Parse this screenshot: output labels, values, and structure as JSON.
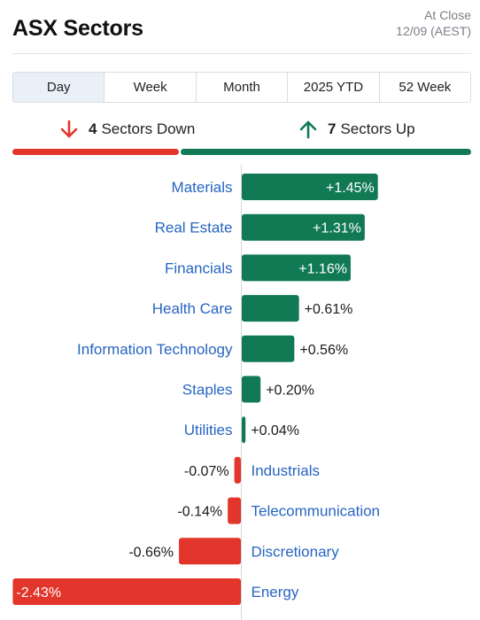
{
  "header": {
    "title": "ASX Sectors",
    "status_line1": "At Close",
    "status_line2": "12/09 (AEST)"
  },
  "tabs": [
    {
      "label": "Day",
      "active": true
    },
    {
      "label": "Week",
      "active": false
    },
    {
      "label": "Month",
      "active": false
    },
    {
      "label": "2025 YTD",
      "active": false
    },
    {
      "label": "52 Week",
      "active": false
    }
  ],
  "summary": {
    "down_count": "4",
    "down_text": "Sectors Down",
    "up_count": "7",
    "up_text": "Sectors Up",
    "down_icon": "arrow-down-icon",
    "up_icon": "arrow-up-icon"
  },
  "colors": {
    "up": "#117a55",
    "down": "#e2352b",
    "label": "#2765c2"
  },
  "chart_data": {
    "type": "bar",
    "orientation": "horizontal",
    "categories": [
      "Materials",
      "Real Estate",
      "Financials",
      "Health Care",
      "Information Technology",
      "Staples",
      "Utilities",
      "Industrials",
      "Telecommunication",
      "Discretionary",
      "Energy"
    ],
    "values": [
      1.45,
      1.31,
      1.16,
      0.61,
      0.56,
      0.2,
      0.04,
      -0.07,
      -0.14,
      -0.66,
      -2.43
    ],
    "value_labels": [
      "+1.45%",
      "+1.31%",
      "+1.16%",
      "+0.61%",
      "+0.56%",
      "+0.20%",
      "+0.04%",
      "-0.07%",
      "-0.14%",
      "-0.66%",
      "-2.43%"
    ],
    "unit": "%",
    "xlim": [
      -2.43,
      1.45
    ],
    "grid": false,
    "legend": "none"
  }
}
